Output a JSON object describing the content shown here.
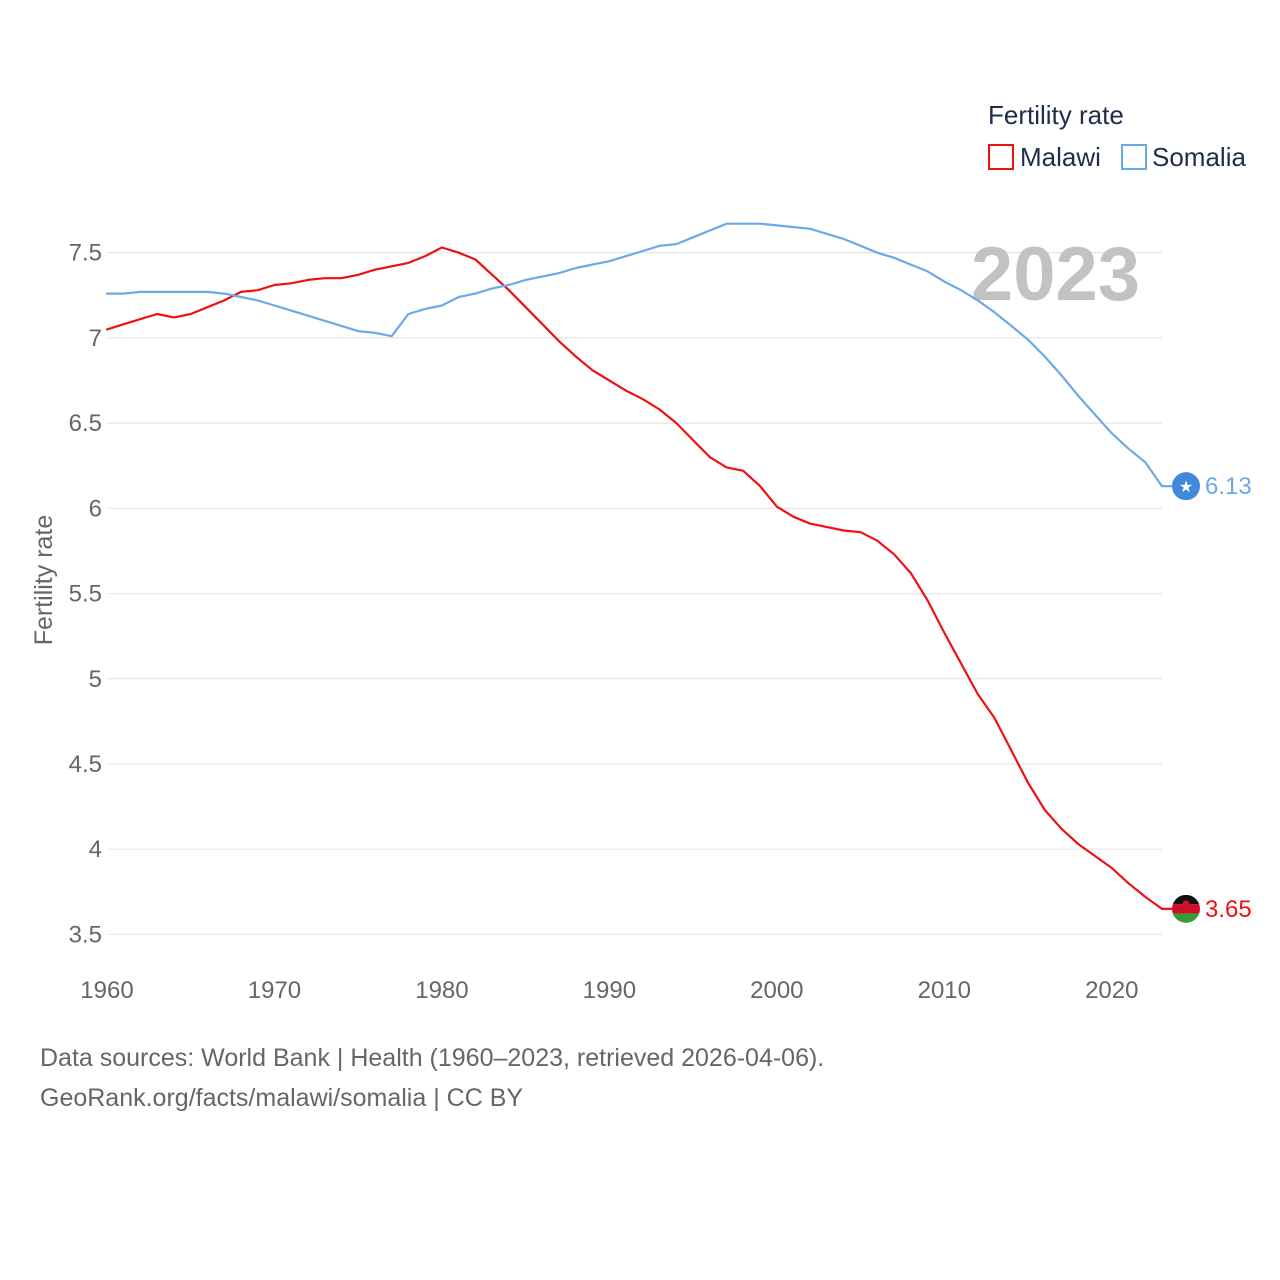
{
  "colors": {
    "malawi": "#ee1111",
    "somalia": "#6aaae8",
    "grid": "#e6e6e6",
    "text": "#666666",
    "year": "#c2c2c2",
    "somalia_flag": "#4189dd"
  },
  "chart_data": {
    "type": "line",
    "title": "Fertility rate",
    "xlabel": "",
    "ylabel": "Fertility rate",
    "xlim": [
      1960,
      2023
    ],
    "ylim": [
      3.35,
      7.85
    ],
    "xticks": [
      1960,
      1970,
      1980,
      1990,
      2000,
      2010,
      2020
    ],
    "yticks": [
      3.5,
      4,
      4.5,
      5,
      5.5,
      6,
      6.5,
      7,
      7.5
    ],
    "year_label": "2023",
    "legend_title": "Fertility rate",
    "legend_position": "top-right",
    "x": [
      1960,
      1961,
      1962,
      1963,
      1964,
      1965,
      1966,
      1967,
      1968,
      1969,
      1970,
      1971,
      1972,
      1973,
      1974,
      1975,
      1976,
      1977,
      1978,
      1979,
      1980,
      1981,
      1982,
      1983,
      1984,
      1985,
      1986,
      1987,
      1988,
      1989,
      1990,
      1991,
      1992,
      1993,
      1994,
      1995,
      1996,
      1997,
      1998,
      1999,
      2000,
      2001,
      2002,
      2003,
      2004,
      2005,
      2006,
      2007,
      2008,
      2009,
      2010,
      2011,
      2012,
      2013,
      2014,
      2015,
      2016,
      2017,
      2018,
      2019,
      2020,
      2021,
      2022,
      2023
    ],
    "series": [
      {
        "name": "Malawi",
        "end_label": "3.65",
        "values": [
          7.05,
          7.08,
          7.11,
          7.14,
          7.12,
          7.14,
          7.18,
          7.22,
          7.27,
          7.28,
          7.31,
          7.32,
          7.34,
          7.35,
          7.35,
          7.37,
          7.4,
          7.42,
          7.44,
          7.48,
          7.53,
          7.5,
          7.46,
          7.37,
          7.28,
          7.18,
          7.08,
          6.98,
          6.89,
          6.81,
          6.75,
          6.69,
          6.64,
          6.58,
          6.5,
          6.4,
          6.3,
          6.24,
          6.22,
          6.13,
          6.01,
          5.95,
          5.91,
          5.89,
          5.87,
          5.86,
          5.81,
          5.73,
          5.62,
          5.46,
          5.27,
          5.09,
          4.91,
          4.77,
          4.58,
          4.39,
          4.23,
          4.12,
          4.03,
          3.96,
          3.89,
          3.8,
          3.72,
          3.65
        ]
      },
      {
        "name": "Somalia",
        "end_label": "6.13",
        "values": [
          7.26,
          7.26,
          7.27,
          7.27,
          7.27,
          7.27,
          7.27,
          7.26,
          7.24,
          7.22,
          7.19,
          7.16,
          7.13,
          7.1,
          7.07,
          7.04,
          7.03,
          7.01,
          7.14,
          7.17,
          7.19,
          7.24,
          7.26,
          7.29,
          7.31,
          7.34,
          7.36,
          7.38,
          7.41,
          7.43,
          7.45,
          7.48,
          7.51,
          7.54,
          7.55,
          7.59,
          7.63,
          7.67,
          7.67,
          7.67,
          7.66,
          7.65,
          7.64,
          7.61,
          7.58,
          7.54,
          7.5,
          7.47,
          7.43,
          7.39,
          7.33,
          7.28,
          7.22,
          7.15,
          7.07,
          6.99,
          6.89,
          6.78,
          6.66,
          6.55,
          6.44,
          6.35,
          6.27,
          6.13
        ]
      }
    ]
  },
  "footer": {
    "line1": "Data sources: World Bank | Health (1960–2023, retrieved 2026-04-06).",
    "line2": "GeoRank.org/facts/malawi/somalia | CC BY"
  }
}
